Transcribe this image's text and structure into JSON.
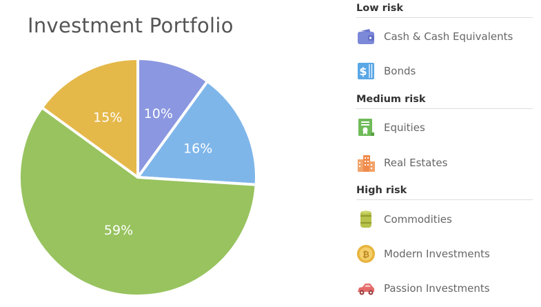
{
  "chart_data": {
    "type": "pie",
    "title": "Investment Portfolio",
    "slices": [
      {
        "category": "Cash & Cash Equivalents",
        "value": 10,
        "label": "10%",
        "color": "#8b97e0"
      },
      {
        "category": "Bonds",
        "value": 16,
        "label": "16%",
        "color": "#7fb6ea"
      },
      {
        "category": "Equities",
        "value": 59,
        "label": "59%",
        "color": "#98c35f"
      },
      {
        "category": "Real Estates",
        "value": 15,
        "label": "15%",
        "color": "#e5b84a"
      }
    ]
  },
  "legend": {
    "groups": [
      {
        "header": "Low risk",
        "items": [
          {
            "label": "Cash & Cash Equivalents",
            "icon": "wallet-icon"
          },
          {
            "label": "Bonds",
            "icon": "dollar-document-icon"
          }
        ]
      },
      {
        "header": "Medium risk",
        "items": [
          {
            "label": "Equities",
            "icon": "certificate-icon"
          },
          {
            "label": "Real Estates",
            "icon": "buildings-icon"
          }
        ]
      },
      {
        "header": "High risk",
        "items": [
          {
            "label": "Commodities",
            "icon": "barrel-icon"
          },
          {
            "label": "Modern Investments",
            "icon": "bitcoin-coin-icon"
          },
          {
            "label": "Passion Investments",
            "icon": "car-icon"
          }
        ]
      }
    ]
  }
}
